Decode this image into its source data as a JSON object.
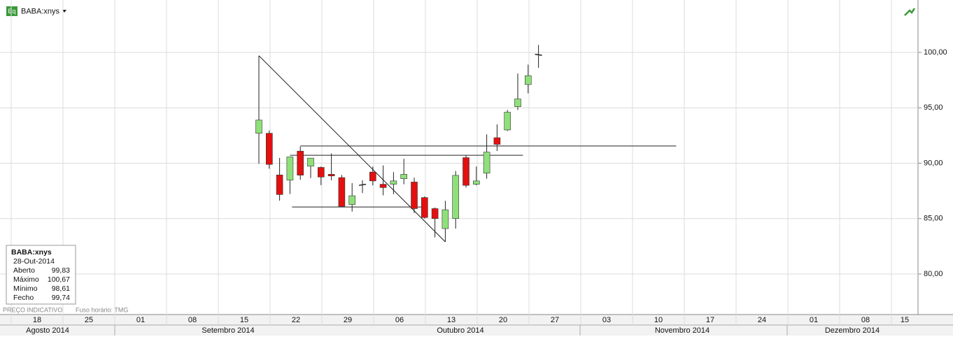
{
  "header": {
    "icon": "Eq",
    "symbol": "BABA:xnys"
  },
  "chart_data": {
    "type": "candlestick",
    "categories": [
      null,
      null,
      null,
      null,
      null,
      null,
      null,
      null,
      null,
      null,
      null,
      null,
      null,
      null,
      null,
      null,
      null,
      null,
      null,
      null,
      null,
      null,
      null,
      null,
      null,
      null,
      null,
      null
    ],
    "open": [
      92.7,
      92.7,
      88.94,
      88.47,
      91.09,
      89.73,
      89.62,
      89.0,
      88.7,
      86.27,
      88.0,
      89.2,
      88.1,
      88.1,
      88.6,
      88.3,
      86.9,
      85.9,
      84.1,
      85.0,
      90.5,
      88.1,
      89.1,
      92.3,
      93.0,
      95.1,
      97.1,
      99.83
    ],
    "high": [
      99.7,
      92.95,
      90.48,
      90.57,
      91.5,
      90.46,
      89.7,
      90.88,
      88.94,
      88.2,
      88.45,
      89.7,
      89.8,
      89.2,
      90.4,
      88.7,
      87.0,
      86.0,
      86.6,
      89.3,
      90.7,
      89.7,
      92.6,
      93.5,
      94.8,
      98.1,
      98.9,
      100.67
    ],
    "low": [
      89.95,
      89.5,
      86.62,
      87.22,
      88.5,
      88.66,
      88.02,
      88.46,
      86.04,
      85.63,
      87.3,
      88.0,
      87.1,
      87.2,
      88.1,
      85.5,
      85.0,
      83.3,
      82.9,
      84.1,
      87.8,
      88.0,
      88.6,
      91.1,
      92.9,
      94.8,
      96.3,
      98.61
    ],
    "close": [
      93.89,
      89.89,
      87.17,
      90.57,
      88.92,
      90.46,
      88.75,
      88.85,
      86.1,
      87.06,
      88.1,
      88.4,
      87.8,
      88.4,
      89.0,
      85.9,
      85.1,
      85.0,
      85.8,
      88.9,
      88.0,
      88.4,
      91.0,
      91.7,
      94.6,
      95.8,
      97.9,
      99.74
    ],
    "up_color": "#8fe07a",
    "down_color": "#e3100f",
    "ylim": [
      76.34,
      104.73
    ],
    "yticks": [
      {
        "value": 80,
        "label": "80,00"
      },
      {
        "value": 85,
        "label": "85,00"
      },
      {
        "value": 90,
        "label": "90,00"
      },
      {
        "value": 95,
        "label": "95,00"
      },
      {
        "value": 100,
        "label": "100,00"
      }
    ],
    "grid": true,
    "lines": [
      {
        "x": [
          0,
          18
        ],
        "y": [
          99.7,
          82.9
        ]
      },
      {
        "x": [
          4,
          40.3
        ],
        "y": [
          91.55,
          91.55
        ]
      },
      {
        "x": [
          3,
          25.5
        ],
        "y": [
          90.72,
          90.72
        ]
      },
      {
        "x": [
          3.2,
          16
        ],
        "y": [
          86.05,
          86.05
        ]
      }
    ],
    "week_labels": [
      "18",
      "25",
      "01",
      "08",
      "15",
      "22",
      "29",
      "06",
      "13",
      "20",
      "27",
      "03",
      "10",
      "17",
      "24",
      "01",
      "08",
      "15"
    ],
    "month_labels": [
      "Agosto 2014",
      "Setembro 2014",
      "Outubro 2014",
      "Novembro 2014",
      "Dezembro 2014"
    ]
  },
  "info": {
    "symbol": "BABA:xnys",
    "date": "28-Out-2014",
    "rows": [
      [
        "Aberto",
        "99,83"
      ],
      [
        "Máximo",
        "100,67"
      ],
      [
        "Mínimo",
        "98,61"
      ],
      [
        "Fecho",
        "99,74"
      ]
    ]
  },
  "footer": {
    "note": "PREÇO INDICATIVO",
    "timezone": "Fuso horário: TMG"
  }
}
